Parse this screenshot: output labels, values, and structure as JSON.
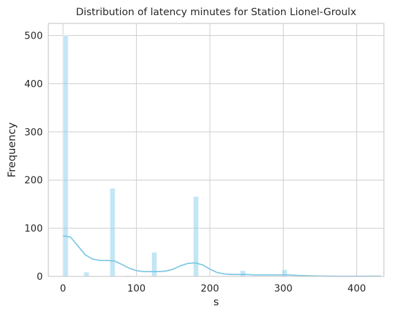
{
  "chart_data": {
    "type": "bar",
    "title": "Distribution of latency minutes for Station Lionel-Groulx",
    "xlabel": "s",
    "ylabel": "Frequency",
    "xlim": [
      -20,
      437
    ],
    "ylim": [
      0,
      525
    ],
    "xticks": [
      0,
      100,
      200,
      300,
      400
    ],
    "yticks": [
      0,
      100,
      200,
      300,
      400,
      500
    ],
    "grid": true,
    "bar_color": "#87ceeb",
    "kde_color": "#7ec8e3",
    "bins": [
      {
        "x0": 0.0,
        "x1": 7.1,
        "count": 500
      },
      {
        "x0": 28.4,
        "x1": 35.5,
        "count": 9
      },
      {
        "x0": 63.9,
        "x1": 71.0,
        "count": 183
      },
      {
        "x0": 85.2,
        "x1": 92.3,
        "count": 2
      },
      {
        "x0": 120.7,
        "x1": 127.8,
        "count": 50
      },
      {
        "x0": 177.5,
        "x1": 184.6,
        "count": 166
      },
      {
        "x0": 241.4,
        "x1": 248.5,
        "count": 12
      },
      {
        "x0": 298.2,
        "x1": 305.3,
        "count": 14
      },
      {
        "x0": 426.0,
        "x1": 433.1,
        "count": 1
      }
    ],
    "kde": [
      {
        "x": 0,
        "y": 84
      },
      {
        "x": 10,
        "y": 82
      },
      {
        "x": 20,
        "y": 64
      },
      {
        "x": 30,
        "y": 45
      },
      {
        "x": 40,
        "y": 36
      },
      {
        "x": 50,
        "y": 33
      },
      {
        "x": 60,
        "y": 33
      },
      {
        "x": 70,
        "y": 32
      },
      {
        "x": 80,
        "y": 25
      },
      {
        "x": 90,
        "y": 17
      },
      {
        "x": 100,
        "y": 12
      },
      {
        "x": 110,
        "y": 10
      },
      {
        "x": 120,
        "y": 10
      },
      {
        "x": 130,
        "y": 10
      },
      {
        "x": 140,
        "y": 11
      },
      {
        "x": 150,
        "y": 15
      },
      {
        "x": 160,
        "y": 22
      },
      {
        "x": 170,
        "y": 27
      },
      {
        "x": 180,
        "y": 28
      },
      {
        "x": 190,
        "y": 24
      },
      {
        "x": 200,
        "y": 15
      },
      {
        "x": 210,
        "y": 8
      },
      {
        "x": 220,
        "y": 5
      },
      {
        "x": 230,
        "y": 4
      },
      {
        "x": 240,
        "y": 4
      },
      {
        "x": 250,
        "y": 4
      },
      {
        "x": 260,
        "y": 3
      },
      {
        "x": 270,
        "y": 3
      },
      {
        "x": 280,
        "y": 3
      },
      {
        "x": 290,
        "y": 3
      },
      {
        "x": 300,
        "y": 3
      },
      {
        "x": 310,
        "y": 3
      },
      {
        "x": 320,
        "y": 2
      },
      {
        "x": 340,
        "y": 1
      },
      {
        "x": 360,
        "y": 0.5
      },
      {
        "x": 380,
        "y": 0.3
      },
      {
        "x": 400,
        "y": 0.3
      },
      {
        "x": 420,
        "y": 0.4
      },
      {
        "x": 433,
        "y": 0.5
      }
    ]
  }
}
